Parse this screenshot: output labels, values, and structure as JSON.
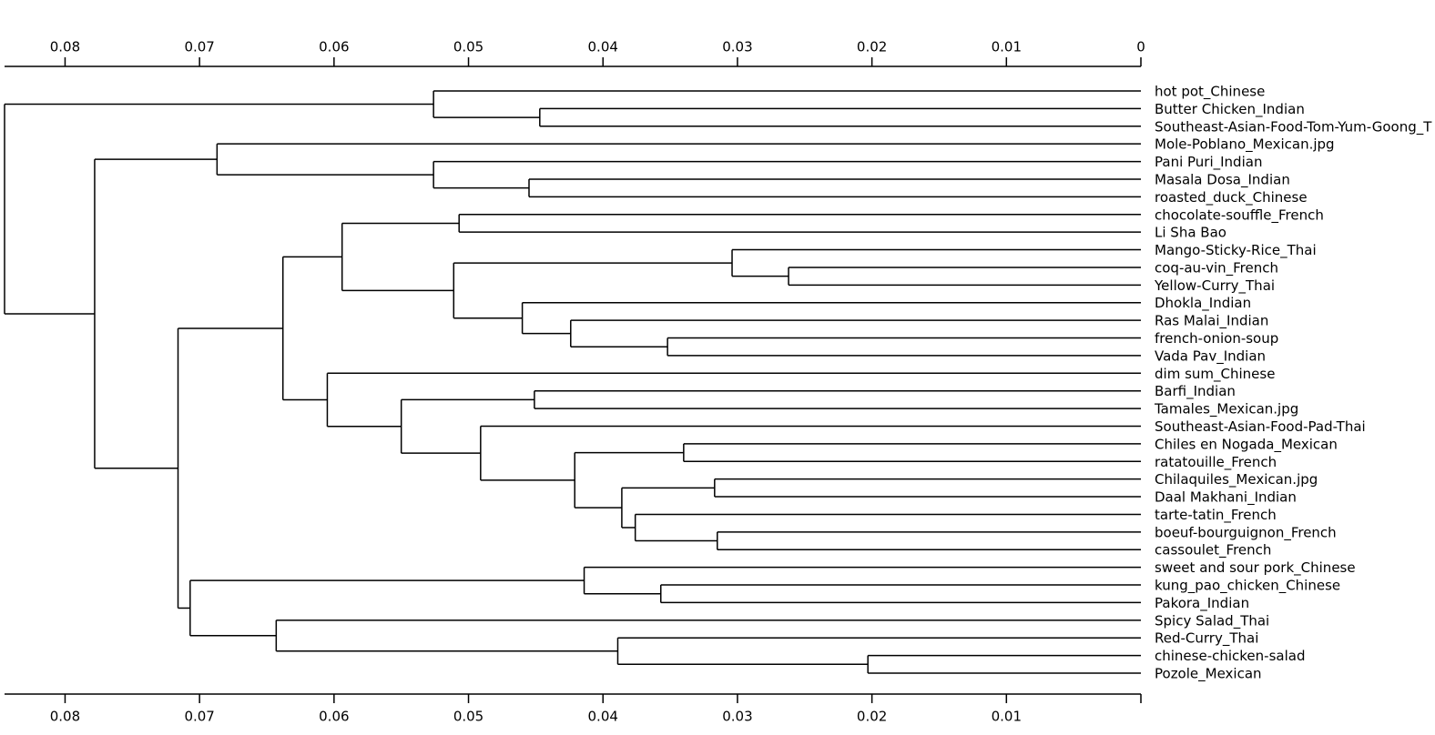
{
  "chart_data": {
    "type": "dendrogram",
    "xlim": [
      0.0845,
      0
    ],
    "xticks": [
      0.08,
      0.07,
      0.06,
      0.05,
      0.04,
      0.03,
      0.02,
      0.01,
      0
    ],
    "bottom_xticks": [
      0.08,
      0.07,
      0.06,
      0.05,
      0.04,
      0.03,
      0.02,
      0.01
    ],
    "color": "#000000",
    "leaves": [
      "hot pot_Chinese",
      "Butter Chicken_Indian",
      "Southeast-Asian-Food-Tom-Yum-Goong_T",
      "Mole-Poblano_Mexican.jpg",
      "Pani Puri_Indian",
      "Masala Dosa_Indian",
      "roasted_duck_Chinese",
      "chocolate-souffle_French",
      "Li Sha Bao",
      "Mango-Sticky-Rice_Thai",
      "coq-au-vin_French",
      "Yellow-Curry_Thai",
      "Dhokla_Indian",
      "Ras Malai_Indian",
      "french-onion-soup",
      "Vada Pav_Indian",
      "dim sum_Chinese",
      "Barfi_Indian",
      "Tamales_Mexican.jpg",
      "Southeast-Asian-Food-Pad-Thai",
      "Chiles en Nogada_Mexican",
      "ratatouille_French",
      "Chilaquiles_Mexican.jpg",
      "Daal Makhani_Indian",
      "tarte-tatin_French",
      "boeuf-bourguignon_French",
      "cassoulet_French",
      "sweet and sour pork_Chinese",
      "kung_pao_chicken_Chinese",
      "Pakora_Indian",
      "Spicy Salad_Thai",
      "Red-Curry_Thai",
      "chinese-chicken-salad",
      "Pozole_Mexican"
    ],
    "merges": [
      {
        "children": [
          1,
          2
        ],
        "height": 0.0447
      },
      {
        "children": [
          0,
          34
        ],
        "height": 0.0526
      },
      {
        "children": [
          5,
          6
        ],
        "height": 0.0455
      },
      {
        "children": [
          4,
          36
        ],
        "height": 0.0526
      },
      {
        "children": [
          3,
          37
        ],
        "height": 0.0687
      },
      {
        "children": [
          7,
          8
        ],
        "height": 0.0507
      },
      {
        "children": [
          10,
          11
        ],
        "height": 0.0262
      },
      {
        "children": [
          9,
          40
        ],
        "height": 0.0304
      },
      {
        "children": [
          14,
          15
        ],
        "height": 0.0352
      },
      {
        "children": [
          13,
          42
        ],
        "height": 0.0424
      },
      {
        "children": [
          12,
          43
        ],
        "height": 0.046
      },
      {
        "children": [
          41,
          44
        ],
        "height": 0.0511
      },
      {
        "children": [
          39,
          45
        ],
        "height": 0.0594
      },
      {
        "children": [
          17,
          18
        ],
        "height": 0.0451
      },
      {
        "children": [
          20,
          21
        ],
        "height": 0.034
      },
      {
        "children": [
          22,
          23
        ],
        "height": 0.0317
      },
      {
        "children": [
          25,
          26
        ],
        "height": 0.0315
      },
      {
        "children": [
          24,
          50
        ],
        "height": 0.0376
      },
      {
        "children": [
          49,
          51
        ],
        "height": 0.0386
      },
      {
        "children": [
          48,
          52
        ],
        "height": 0.0421
      },
      {
        "children": [
          19,
          53
        ],
        "height": 0.0491
      },
      {
        "children": [
          47,
          54
        ],
        "height": 0.055
      },
      {
        "children": [
          16,
          55
        ],
        "height": 0.0605
      },
      {
        "children": [
          46,
          56
        ],
        "height": 0.0638
      },
      {
        "children": [
          28,
          29
        ],
        "height": 0.0357
      },
      {
        "children": [
          27,
          58
        ],
        "height": 0.0414
      },
      {
        "children": [
          32,
          33
        ],
        "height": 0.0203
      },
      {
        "children": [
          31,
          60
        ],
        "height": 0.0389
      },
      {
        "children": [
          30,
          61
        ],
        "height": 0.0643
      },
      {
        "children": [
          59,
          62
        ],
        "height": 0.0707
      },
      {
        "children": [
          57,
          63
        ],
        "height": 0.0716
      },
      {
        "children": [
          38,
          64
        ],
        "height": 0.0778
      },
      {
        "children": [
          35,
          65
        ],
        "height": 0.0845
      }
    ]
  }
}
